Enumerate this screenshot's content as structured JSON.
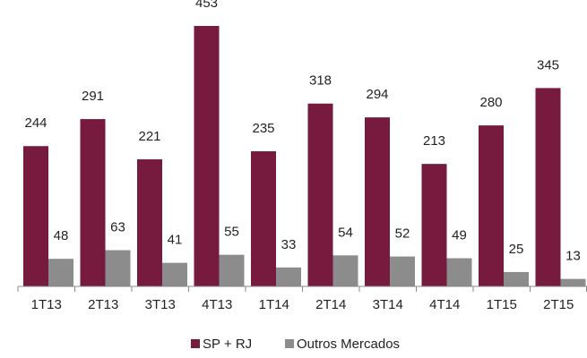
{
  "chart_data": {
    "type": "bar",
    "categories": [
      "1T13",
      "2T13",
      "3T13",
      "4T13",
      "1T14",
      "2T14",
      "3T14",
      "4T14",
      "1T15",
      "2T15"
    ],
    "series": [
      {
        "name": "SP + RJ",
        "color": "#761a3e",
        "values": [
          244,
          291,
          221,
          453,
          235,
          318,
          294,
          213,
          280,
          345
        ]
      },
      {
        "name": "Outros Mercados",
        "color": "#8c8c8c",
        "values": [
          48,
          63,
          41,
          55,
          33,
          54,
          52,
          49,
          25,
          13
        ]
      }
    ],
    "legend": "bottom"
  }
}
